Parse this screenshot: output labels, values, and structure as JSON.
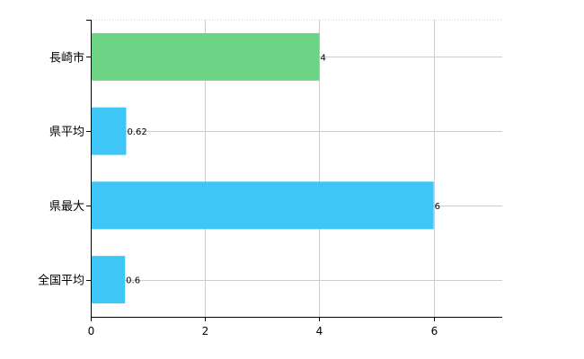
{
  "chart_data": {
    "type": "bar",
    "orientation": "horizontal",
    "categories": [
      "長崎市",
      "県平均",
      "県最大",
      "全国平均"
    ],
    "values": [
      4,
      0.62,
      6,
      0.6
    ],
    "value_labels": [
      "4",
      "0.62",
      "6",
      "0.6"
    ],
    "bar_colors": [
      "#6cd486",
      "#3ec6f6",
      "#3ec6f6",
      "#3ec6f6"
    ],
    "xlim": [
      0,
      7.2
    ],
    "xticks": [
      0,
      2,
      4,
      6
    ],
    "xtick_labels": [
      "0",
      "2",
      "4",
      "6"
    ],
    "grid": true,
    "title": "",
    "xlabel": "",
    "ylabel": ""
  }
}
